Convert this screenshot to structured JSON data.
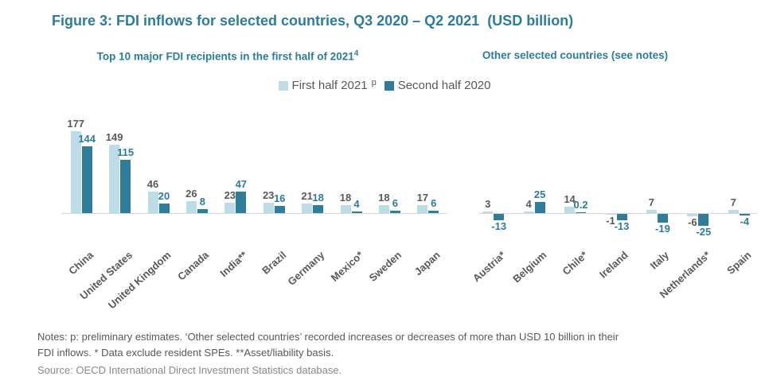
{
  "title": "Figure 3: FDI inflows for selected countries, Q3 2020 – Q2 2021  (USD billion)",
  "legend": {
    "position": "top-center",
    "items": [
      {
        "label": "First half 2021",
        "superscript": "p",
        "swatch": "#BCDCE8"
      },
      {
        "label": "Second half 2020",
        "swatch": "#2E7E9B"
      }
    ]
  },
  "colors": {
    "light_series": "#BCDCE8",
    "dark_series": "#2E7E9B",
    "teal_text": "#2B7D9C",
    "gray_text": "#595959",
    "axis_line": "#D9D9D9",
    "source_text": "#8A8A8A"
  },
  "chart_data": [
    {
      "type": "bar",
      "title": "Top 10 major FDI recipients in the first half of 2021",
      "title_superscript": "4",
      "categories": [
        "China",
        "United States",
        "United Kingdom",
        "Canada",
        "India**",
        "Brazil",
        "Germany",
        "Mexico*",
        "Sweden",
        "Japan"
      ],
      "series": [
        {
          "name": "First half 2021",
          "values": [
            177,
            149,
            46,
            26,
            23,
            23,
            21,
            18,
            18,
            17
          ]
        },
        {
          "name": "Second half 2020",
          "values": [
            144,
            115,
            20,
            8,
            47,
            16,
            18,
            4,
            6,
            6
          ]
        }
      ],
      "value_labels": true,
      "grid": false,
      "axis_style": "baseline-only",
      "ylim": [
        0,
        190
      ]
    },
    {
      "type": "bar",
      "title": "Other selected countries (see notes)",
      "categories": [
        "Austria*",
        "Belgium",
        "Chile*",
        "Ireland",
        "Italy",
        "Netherlands*",
        "Spain"
      ],
      "series": [
        {
          "name": "First half 2021",
          "values": [
            3,
            4,
            14,
            -1,
            7,
            -6,
            7
          ]
        },
        {
          "name": "Second half 2020",
          "values": [
            -13,
            25,
            0.2,
            -13,
            -19,
            -25,
            -4
          ]
        }
      ],
      "value_labels": true,
      "grid": false,
      "axis_style": "baseline-only",
      "ylim": [
        -30,
        30
      ]
    }
  ],
  "notes": {
    "line1": "Notes: p: preliminary estimates. ‘Other selected countries’ recorded increases or decreases of more than USD 10 billion in their",
    "line2": "FDI inflows. * Data exclude resident SPEs. **Asset/liability basis.",
    "source": "Source: OECD International Direct Investment Statistics database."
  }
}
